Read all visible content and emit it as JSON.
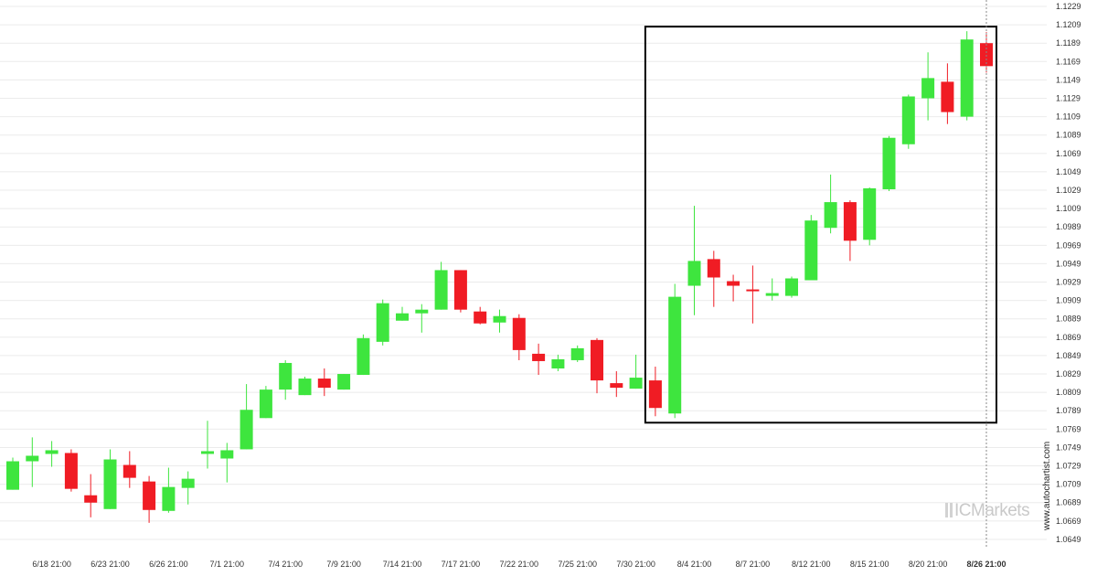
{
  "chart_data": {
    "type": "candlestick",
    "title": "",
    "xlabel": "",
    "ylabel": "",
    "ylim": [
      1.0639,
      1.1229
    ],
    "y_ticks": [
      "1.1229",
      "1.1209",
      "1.1189",
      "1.1169",
      "1.1149",
      "1.1129",
      "1.1109",
      "1.1089",
      "1.1069",
      "1.1049",
      "1.1029",
      "1.1009",
      "1.0989",
      "1.0969",
      "1.0949",
      "1.0929",
      "1.0909",
      "1.0889",
      "1.0869",
      "1.0849",
      "1.0829",
      "1.0809",
      "1.0789",
      "1.0769",
      "1.0749",
      "1.0729",
      "1.0709",
      "1.0689",
      "1.0669",
      "1.0649"
    ],
    "x_ticks": [
      {
        "label": "6/18 21:00",
        "index": 2,
        "bold": false
      },
      {
        "label": "6/23 21:00",
        "index": 5,
        "bold": false
      },
      {
        "label": "6/26 21:00",
        "index": 8,
        "bold": false
      },
      {
        "label": "7/1 21:00",
        "index": 11,
        "bold": false
      },
      {
        "label": "7/4 21:00",
        "index": 14,
        "bold": false
      },
      {
        "label": "7/9 21:00",
        "index": 17,
        "bold": false
      },
      {
        "label": "7/14 21:00",
        "index": 20,
        "bold": false
      },
      {
        "label": "7/17 21:00",
        "index": 23,
        "bold": false
      },
      {
        "label": "7/22 21:00",
        "index": 26,
        "bold": false
      },
      {
        "label": "7/25 21:00",
        "index": 29,
        "bold": false
      },
      {
        "label": "7/30 21:00",
        "index": 32,
        "bold": false
      },
      {
        "label": "8/4 21:00",
        "index": 35,
        "bold": false
      },
      {
        "label": "8/7 21:00",
        "index": 38,
        "bold": false
      },
      {
        "label": "8/12 21:00",
        "index": 41,
        "bold": false
      },
      {
        "label": "8/15 21:00",
        "index": 44,
        "bold": false
      },
      {
        "label": "8/20 21:00",
        "index": 47,
        "bold": false
      },
      {
        "label": "8/26 21:00",
        "index": 50,
        "bold": true
      }
    ],
    "candles": [
      {
        "o": 1.0703,
        "h": 1.0738,
        "l": 1.0703,
        "c": 1.0734
      },
      {
        "o": 1.0734,
        "h": 1.076,
        "l": 1.0706,
        "c": 1.074
      },
      {
        "o": 1.0742,
        "h": 1.0756,
        "l": 1.0728,
        "c": 1.0746
      },
      {
        "o": 1.0743,
        "h": 1.0747,
        "l": 1.0701,
        "c": 1.0704
      },
      {
        "o": 1.0697,
        "h": 1.072,
        "l": 1.0673,
        "c": 1.0689
      },
      {
        "o": 1.0682,
        "h": 1.0747,
        "l": 1.0682,
        "c": 1.0736
      },
      {
        "o": 1.073,
        "h": 1.0745,
        "l": 1.0705,
        "c": 1.0716
      },
      {
        "o": 1.0712,
        "h": 1.0718,
        "l": 1.0667,
        "c": 1.0681
      },
      {
        "o": 1.068,
        "h": 1.0727,
        "l": 1.0678,
        "c": 1.0706
      },
      {
        "o": 1.0705,
        "h": 1.0723,
        "l": 1.0687,
        "c": 1.0715
      },
      {
        "o": 1.0742,
        "h": 1.0778,
        "l": 1.0726,
        "c": 1.0745
      },
      {
        "o": 1.0737,
        "h": 1.0754,
        "l": 1.0711,
        "c": 1.0746
      },
      {
        "o": 1.0747,
        "h": 1.0818,
        "l": 1.0747,
        "c": 1.079
      },
      {
        "o": 1.0781,
        "h": 1.0816,
        "l": 1.0781,
        "c": 1.0812
      },
      {
        "o": 1.0812,
        "h": 1.0844,
        "l": 1.0801,
        "c": 1.0841
      },
      {
        "o": 1.0806,
        "h": 1.0826,
        "l": 1.0806,
        "c": 1.0824
      },
      {
        "o": 1.0824,
        "h": 1.0835,
        "l": 1.0805,
        "c": 1.0814
      },
      {
        "o": 1.0812,
        "h": 1.0829,
        "l": 1.0812,
        "c": 1.0829
      },
      {
        "o": 1.0828,
        "h": 1.0872,
        "l": 1.0828,
        "c": 1.0868
      },
      {
        "o": 1.0864,
        "h": 1.091,
        "l": 1.086,
        "c": 1.0906
      },
      {
        "o": 1.0887,
        "h": 1.0902,
        "l": 1.0887,
        "c": 1.0895
      },
      {
        "o": 1.0895,
        "h": 1.0905,
        "l": 1.0874,
        "c": 1.0899
      },
      {
        "o": 1.0899,
        "h": 1.0951,
        "l": 1.0899,
        "c": 1.0942
      },
      {
        "o": 1.0942,
        "h": 1.0942,
        "l": 1.0896,
        "c": 1.0899
      },
      {
        "o": 1.0897,
        "h": 1.0902,
        "l": 1.0883,
        "c": 1.0884
      },
      {
        "o": 1.0885,
        "h": 1.0899,
        "l": 1.0874,
        "c": 1.0892
      },
      {
        "o": 1.089,
        "h": 1.0894,
        "l": 1.0844,
        "c": 1.0855
      },
      {
        "o": 1.0851,
        "h": 1.0862,
        "l": 1.0828,
        "c": 1.0843
      },
      {
        "o": 1.0835,
        "h": 1.085,
        "l": 1.0832,
        "c": 1.0845
      },
      {
        "o": 1.0844,
        "h": 1.086,
        "l": 1.0842,
        "c": 1.0857
      },
      {
        "o": 1.0866,
        "h": 1.0868,
        "l": 1.0808,
        "c": 1.0822
      },
      {
        "o": 1.0819,
        "h": 1.0832,
        "l": 1.0804,
        "c": 1.0814
      },
      {
        "o": 1.0813,
        "h": 1.085,
        "l": 1.0813,
        "c": 1.0825
      },
      {
        "o": 1.0822,
        "h": 1.0837,
        "l": 1.0783,
        "c": 1.0792
      },
      {
        "o": 1.0786,
        "h": 1.0927,
        "l": 1.0781,
        "c": 1.0913
      },
      {
        "o": 1.0925,
        "h": 1.1012,
        "l": 1.0893,
        "c": 1.0952
      },
      {
        "o": 1.0954,
        "h": 1.0963,
        "l": 1.0902,
        "c": 1.0934
      },
      {
        "o": 1.093,
        "h": 1.0937,
        "l": 1.0908,
        "c": 1.0925
      },
      {
        "o": 1.0921,
        "h": 1.0947,
        "l": 1.0884,
        "c": 1.0919
      },
      {
        "o": 1.0914,
        "h": 1.0933,
        "l": 1.0909,
        "c": 1.0917
      },
      {
        "o": 1.0914,
        "h": 1.0935,
        "l": 1.0912,
        "c": 1.0933
      },
      {
        "o": 1.0931,
        "h": 1.1002,
        "l": 1.0931,
        "c": 1.0996
      },
      {
        "o": 1.0988,
        "h": 1.1046,
        "l": 1.0982,
        "c": 1.1016
      },
      {
        "o": 1.1016,
        "h": 1.1018,
        "l": 1.0952,
        "c": 1.0974
      },
      {
        "o": 1.0975,
        "h": 1.1032,
        "l": 1.0969,
        "c": 1.1031
      },
      {
        "o": 1.103,
        "h": 1.1088,
        "l": 1.1028,
        "c": 1.1086
      },
      {
        "o": 1.1079,
        "h": 1.1133,
        "l": 1.1074,
        "c": 1.1131
      },
      {
        "o": 1.1129,
        "h": 1.1179,
        "l": 1.1105,
        "c": 1.1151
      },
      {
        "o": 1.1147,
        "h": 1.1167,
        "l": 1.1101,
        "c": 1.1114
      },
      {
        "o": 1.1109,
        "h": 1.1202,
        "l": 1.1105,
        "c": 1.1193
      },
      {
        "o": 1.1189,
        "h": 1.1201,
        "l": 1.1157,
        "c": 1.1164
      }
    ],
    "highlight": {
      "from_index": 33,
      "to_index": 50,
      "low": 1.0776,
      "high": 1.1207
    },
    "last_marker_index": 50,
    "colors": {
      "up": "#3ee53e",
      "down": "#f01c24",
      "box": "#000000",
      "grid": "#ebebeb",
      "marker": "#888888"
    }
  },
  "watermark": "www.autochartist.com",
  "brand": {
    "part1": "IC",
    "part2": "Markets"
  }
}
